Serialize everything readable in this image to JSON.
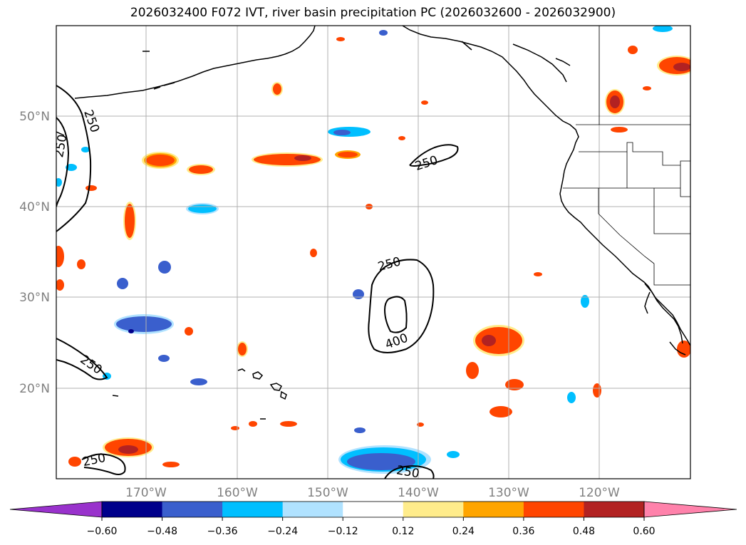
{
  "title": "2026032400 F072 IVT, river basin precipitation PC (2026032600 - 2026032900)",
  "lat_labels": [
    "50°N",
    "40°N",
    "30°N",
    "20°N"
  ],
  "lon_labels": [
    "170°W",
    "160°W",
    "150°W",
    "140°W",
    "130°W",
    "120°W"
  ],
  "contour_labels": [
    "250",
    "250",
    "250",
    "250",
    "250",
    "250",
    "400",
    "250"
  ],
  "colorbar": {
    "tick_labels": [
      "−0.60",
      "−0.48",
      "−0.36",
      "−0.24",
      "−0.12",
      "0.12",
      "0.24",
      "0.36",
      "0.48",
      "0.60"
    ],
    "colors": {
      "under": "#9932cc",
      "bins": [
        "#00008b",
        "#3a5fcd",
        "#00bfff",
        "#b0e2ff",
        "#ffffff",
        "#ffec8b",
        "#ffa500",
        "#ff4500",
        "#b22222"
      ],
      "over": "#ff82ab"
    }
  }
}
